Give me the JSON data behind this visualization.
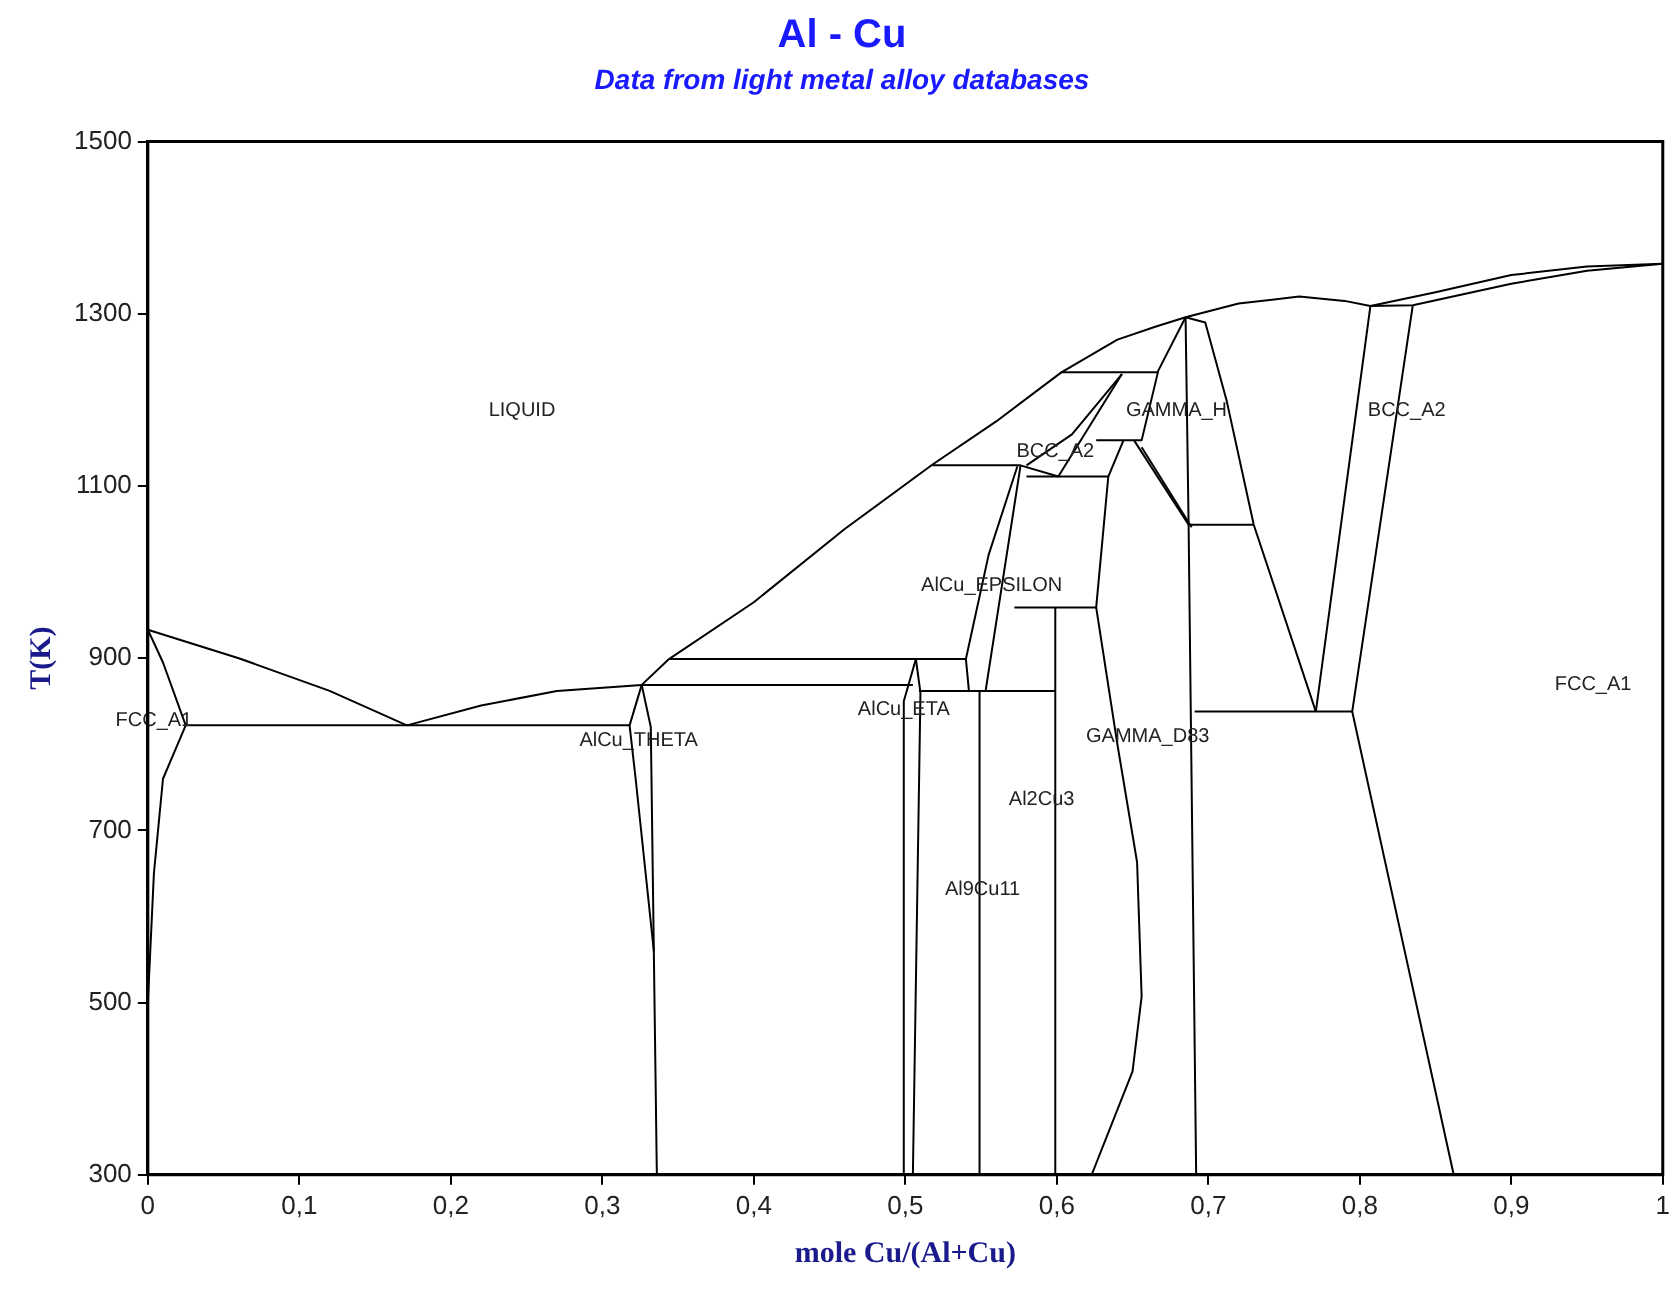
{
  "chart_data": {
    "type": "line",
    "title": "Al - Cu",
    "subtitle": "Data from light metal alloy databases",
    "xlabel": "mole Cu/(Al+Cu)",
    "ylabel": "T(K)",
    "xlim": [
      0,
      1
    ],
    "ylim": [
      300,
      1500
    ],
    "xticks": [
      0,
      {
        "value": 0.1,
        "label": "0,1"
      },
      {
        "value": 0.2,
        "label": "0,2"
      },
      {
        "value": 0.3,
        "label": "0,3"
      },
      {
        "value": 0.4,
        "label": "0,4"
      },
      {
        "value": 0.5,
        "label": "0,5"
      },
      {
        "value": 0.6,
        "label": "0,6"
      },
      {
        "value": 0.7,
        "label": "0,7"
      },
      {
        "value": 0.8,
        "label": "0,8"
      },
      {
        "value": 0.9,
        "label": "0,9"
      },
      1
    ],
    "yticks": [
      300,
      500,
      700,
      900,
      1100,
      1300,
      1500
    ],
    "grid": false,
    "legend": false,
    "marker": "none",
    "line_style": "solid",
    "series": [
      {
        "color": "#000000",
        "x": [
          0,
          0.06,
          0.12,
          0.171
        ],
        "values": [
          933,
          900,
          862,
          822
        ]
      },
      {
        "color": "#000000",
        "x": [
          0,
          0.01,
          0.025
        ],
        "values": [
          933,
          895,
          822
        ]
      },
      {
        "color": "#000000",
        "x": [
          0.025,
          0.01,
          0.004,
          0
        ],
        "values": [
          822,
          760,
          650,
          500
        ]
      },
      {
        "color": "#000000",
        "x": [
          0.025,
          0.318
        ],
        "values": [
          822,
          822
        ]
      },
      {
        "color": "#000000",
        "x": [
          0.171,
          0.22,
          0.27,
          0.326,
          0.505
        ],
        "values": [
          822,
          845,
          862,
          869,
          869
        ]
      },
      {
        "color": "#000000",
        "x": [
          0.326,
          0.344,
          0.4,
          0.46,
          0.518,
          0.56,
          0.603,
          0.64,
          0.665,
          0.685,
          0.72,
          0.76,
          0.79,
          0.807,
          0.85,
          0.9,
          0.95,
          1
        ],
        "values": [
          869,
          899,
          965,
          1050,
          1125,
          1175,
          1232,
          1270,
          1285,
          1296,
          1312,
          1320,
          1315,
          1309,
          1325,
          1345,
          1355,
          1358
        ]
      },
      {
        "color": "#000000",
        "x": [
          0.326,
          0.318,
          0.322,
          0.334
        ],
        "values": [
          869,
          822,
          760,
          560
        ]
      },
      {
        "color": "#000000",
        "x": [
          0.326,
          0.332,
          0.336
        ],
        "values": [
          869,
          820,
          300
        ]
      },
      {
        "color": "#000000",
        "x": [
          0.344,
          0.54
        ],
        "values": [
          899,
          899
        ]
      },
      {
        "color": "#000000",
        "x": [
          0.499,
          0.499,
          0.507
        ],
        "values": [
          300,
          850,
          899
        ]
      },
      {
        "color": "#000000",
        "x": [
          0.507,
          0.51,
          0.505
        ],
        "values": [
          899,
          860,
          300
        ]
      },
      {
        "color": "#000000",
        "x": [
          0.574,
          0.555,
          0.54,
          0.542,
          0.553,
          0.576
        ],
        "values": [
          1123,
          1020,
          899,
          862,
          862,
          1123
        ]
      },
      {
        "color": "#000000",
        "x": [
          0.509,
          0.599
        ],
        "values": [
          862,
          862
        ]
      },
      {
        "color": "#000000",
        "x": [
          0.549,
          0.549
        ],
        "values": [
          300,
          862
        ]
      },
      {
        "color": "#000000",
        "x": [
          0.599,
          0.599
        ],
        "values": [
          300,
          959
        ]
      },
      {
        "color": "#000000",
        "x": [
          0.572,
          0.626
        ],
        "values": [
          959,
          959
        ]
      },
      {
        "color": "#000000",
        "x": [
          0.58,
          0.634
        ],
        "values": [
          1111,
          1111
        ]
      },
      {
        "color": "#000000",
        "x": [
          0.518,
          0.576,
          0.601,
          0.643
        ],
        "values": [
          1124,
          1124,
          1111,
          1230
        ]
      },
      {
        "color": "#000000",
        "x": [
          0.58,
          0.61,
          0.643
        ],
        "values": [
          1124,
          1160,
          1230
        ]
      },
      {
        "color": "#000000",
        "x": [
          0.603,
          0.667
        ],
        "values": [
          1232,
          1232
        ]
      },
      {
        "color": "#000000",
        "x": [
          0.685,
          0.667,
          0.656,
          0.626
        ],
        "values": [
          1296,
          1234,
          1153,
          1153
        ]
      },
      {
        "color": "#000000",
        "x": [
          0.651,
          0.687
        ],
        "values": [
          1153,
          1055
        ]
      },
      {
        "color": "#000000",
        "x": [
          0.656,
          0.689
        ],
        "values": [
          1145,
          1052
        ]
      },
      {
        "color": "#000000",
        "x": [
          0.685,
          0.687,
          0.692
        ],
        "values": [
          1296,
          1055,
          300
        ]
      },
      {
        "color": "#000000",
        "x": [
          0.687,
          0.73
        ],
        "values": [
          1055,
          1055
        ]
      },
      {
        "color": "#000000",
        "x": [
          0.685,
          0.698,
          0.712,
          0.73,
          0.771
        ],
        "values": [
          1296,
          1290,
          1200,
          1055,
          838
        ]
      },
      {
        "color": "#000000",
        "x": [
          0.807,
          0.771
        ],
        "values": [
          1309,
          838
        ]
      },
      {
        "color": "#000000",
        "x": [
          0.835,
          0.795,
          0.862
        ],
        "values": [
          1310,
          838,
          300
        ]
      },
      {
        "color": "#000000",
        "x": [
          0.691,
          0.795
        ],
        "values": [
          838,
          838
        ]
      },
      {
        "color": "#000000",
        "x": [
          0.644,
          0.634,
          0.626,
          0.64,
          0.653,
          0.656,
          0.65,
          0.623
        ],
        "values": [
          1153,
          1111,
          959,
          800,
          663,
          507,
          420,
          300
        ]
      },
      {
        "color": "#000000",
        "x": [
          0.807,
          0.835,
          0.9,
          0.95,
          1
        ],
        "values": [
          1309,
          1310,
          1335,
          1350,
          1358
        ]
      }
    ],
    "annotations": [
      "LIQUID",
      "FCC_A1",
      "AlCu_THETA",
      "AlCu_ETA",
      "AlCu_EPSILON",
      "BCC_A2",
      "GAMMA_H",
      "BCC_A2",
      "Al2Cu3",
      "Al9Cu11",
      "GAMMA_D83",
      "FCC_A1"
    ]
  }
}
